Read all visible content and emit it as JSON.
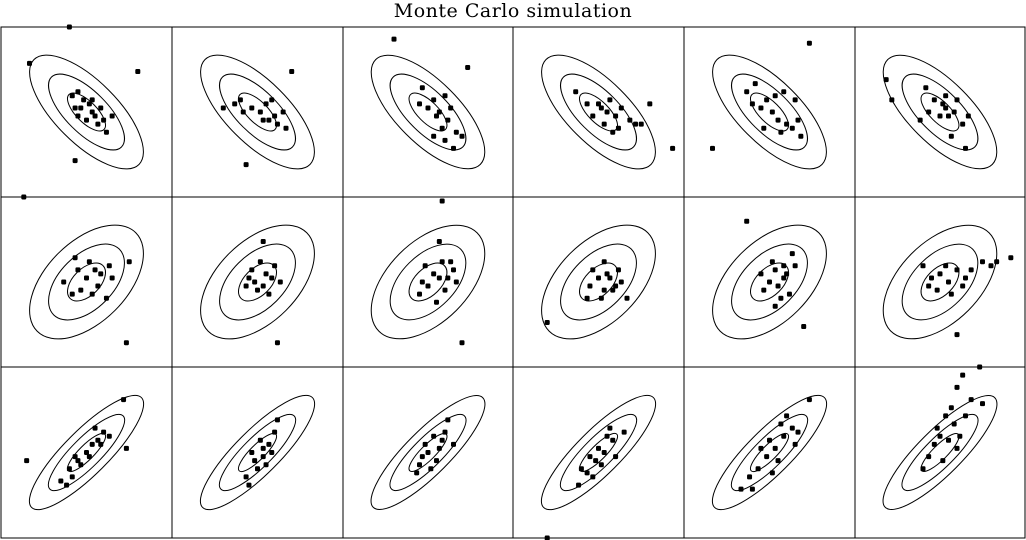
{
  "title": "Monte Carlo simulation",
  "chart_data": {
    "type": "scatter",
    "title": "Monte Carlo simulation",
    "grid": false,
    "legend": "none",
    "xlim": [
      -3,
      3
    ],
    "ylim": [
      -2.1,
      2.1
    ],
    "layout": {
      "rows": 3,
      "cols": 6
    },
    "ellipse_levels": [
      1,
      2,
      3
    ],
    "row_correlation": [
      -0.7,
      0.5,
      0.85
    ],
    "colors": {
      "ink": "#000000",
      "background": "#ffffff"
    },
    "panels": [
      {
        "row": 0,
        "col": 0,
        "points": [
          [
            -0.6,
            2.1
          ],
          [
            -2.0,
            1.2
          ],
          [
            -0.4,
            -1.2
          ],
          [
            1.8,
            1.0
          ],
          [
            -0.3,
            0.5
          ],
          [
            0.2,
            0.0
          ],
          [
            -0.5,
            0.4
          ],
          [
            0.4,
            -0.3
          ],
          [
            0.1,
            0.2
          ],
          [
            -0.2,
            0.1
          ],
          [
            0.3,
            -0.1
          ],
          [
            0.6,
            -0.2
          ],
          [
            -0.1,
            0.3
          ],
          [
            0.5,
            0.1
          ],
          [
            0.0,
            -0.2
          ],
          [
            -0.4,
            0.1
          ],
          [
            0.2,
            0.3
          ],
          [
            0.7,
            -0.5
          ],
          [
            0.9,
            -0.1
          ],
          [
            -0.3,
            -0.1
          ]
        ]
      },
      {
        "row": 0,
        "col": 1,
        "points": [
          [
            -0.4,
            -1.3
          ],
          [
            1.2,
            1.0
          ],
          [
            -0.8,
            0.2
          ],
          [
            -1.2,
            0.1
          ],
          [
            -0.5,
            0.0
          ],
          [
            0.3,
            0.2
          ],
          [
            0.6,
            -0.1
          ],
          [
            0.2,
            -0.2
          ],
          [
            -0.2,
            0.1
          ],
          [
            0.5,
            0.3
          ],
          [
            0.9,
            0.0
          ],
          [
            -0.6,
            0.3
          ],
          [
            0.1,
            0.0
          ],
          [
            0.7,
            -0.3
          ],
          [
            1.0,
            -0.4
          ],
          [
            0.4,
            -0.2
          ]
        ]
      },
      {
        "row": 0,
        "col": 2,
        "points": [
          [
            -1.2,
            1.8
          ],
          [
            1.4,
            1.1
          ],
          [
            -0.2,
            0.6
          ],
          [
            0.2,
            0.3
          ],
          [
            0.6,
            0.4
          ],
          [
            0.3,
            -0.1
          ],
          [
            0.0,
            0.1
          ],
          [
            0.5,
            -0.4
          ],
          [
            0.8,
            0.1
          ],
          [
            -0.3,
            0.2
          ],
          [
            0.4,
            0.0
          ],
          [
            0.7,
            -0.2
          ],
          [
            1.0,
            -0.5
          ],
          [
            0.2,
            -0.6
          ],
          [
            0.6,
            -0.7
          ],
          [
            0.9,
            -0.9
          ],
          [
            1.2,
            -0.6
          ]
        ]
      },
      {
        "row": 0,
        "col": 3,
        "points": [
          [
            2.6,
            -0.9
          ],
          [
            1.8,
            0.2
          ],
          [
            1.5,
            -0.3
          ],
          [
            -0.8,
            0.5
          ],
          [
            0.0,
            0.2
          ],
          [
            0.3,
            0.0
          ],
          [
            0.6,
            -0.1
          ],
          [
            -0.2,
            -0.1
          ],
          [
            0.4,
            0.3
          ],
          [
            0.8,
            0.1
          ],
          [
            1.1,
            -0.2
          ],
          [
            0.2,
            -0.3
          ],
          [
            -0.4,
            0.2
          ],
          [
            0.7,
            -0.4
          ],
          [
            1.3,
            -0.3
          ],
          [
            0.5,
            -0.5
          ],
          [
            0.1,
            0.1
          ]
        ]
      },
      {
        "row": 0,
        "col": 4,
        "points": [
          [
            1.4,
            1.7
          ],
          [
            -2.0,
            -0.9
          ],
          [
            -0.5,
            0.7
          ],
          [
            -0.8,
            0.5
          ],
          [
            -0.1,
            0.3
          ],
          [
            0.2,
            0.4
          ],
          [
            0.5,
            0.5
          ],
          [
            -0.3,
            0.1
          ],
          [
            0.1,
            0.0
          ],
          [
            0.6,
            -0.3
          ],
          [
            0.8,
            -0.4
          ],
          [
            1.1,
            -0.6
          ],
          [
            0.3,
            -0.2
          ],
          [
            -0.6,
            0.2
          ],
          [
            0.9,
            0.3
          ],
          [
            0.4,
            -0.5
          ],
          [
            1.0,
            -0.2
          ],
          [
            -0.2,
            -0.4
          ]
        ]
      },
      {
        "row": 0,
        "col": 5,
        "points": [
          [
            -1.9,
            0.8
          ],
          [
            -1.7,
            0.3
          ],
          [
            -0.5,
            0.6
          ],
          [
            -0.2,
            0.3
          ],
          [
            0.1,
            0.2
          ],
          [
            0.3,
            -0.1
          ],
          [
            0.5,
            0.0
          ],
          [
            -0.4,
            0.0
          ],
          [
            0.0,
            -0.1
          ],
          [
            0.2,
            0.4
          ],
          [
            0.6,
            0.3
          ],
          [
            0.8,
            -0.3
          ],
          [
            1.0,
            -0.1
          ],
          [
            -0.7,
            -0.2
          ],
          [
            0.4,
            -0.6
          ],
          [
            0.9,
            -0.9
          ],
          [
            0.2,
            0.1
          ]
        ]
      },
      {
        "row": 1,
        "col": 0,
        "points": [
          [
            -2.2,
            2.1
          ],
          [
            1.5,
            0.5
          ],
          [
            1.4,
            -1.5
          ],
          [
            -0.4,
            0.6
          ],
          [
            0.0,
            0.1
          ],
          [
            0.3,
            0.3
          ],
          [
            0.5,
            0.2
          ],
          [
            -0.2,
            -0.2
          ],
          [
            -0.5,
            -0.3
          ],
          [
            0.7,
            -0.4
          ],
          [
            0.1,
            0.5
          ],
          [
            -0.8,
            0.0
          ],
          [
            0.4,
            -0.1
          ],
          [
            0.8,
            0.4
          ],
          [
            -0.3,
            0.3
          ],
          [
            0.2,
            -0.3
          ],
          [
            0.9,
            0.1
          ]
        ]
      },
      {
        "row": 1,
        "col": 1,
        "points": [
          [
            0.2,
            1.0
          ],
          [
            0.7,
            -1.5
          ],
          [
            0.1,
            0.5
          ],
          [
            0.3,
            0.2
          ],
          [
            -0.2,
            0.3
          ],
          [
            -0.4,
            -0.1
          ],
          [
            0.0,
            -0.2
          ],
          [
            0.5,
            0.1
          ],
          [
            0.8,
            0.0
          ],
          [
            -0.1,
            0.0
          ],
          [
            0.4,
            -0.3
          ],
          [
            0.6,
            0.4
          ],
          [
            0.2,
            -0.1
          ],
          [
            -0.3,
            0.1
          ]
        ]
      },
      {
        "row": 1,
        "col": 2,
        "points": [
          [
            0.5,
            2.0
          ],
          [
            1.2,
            -1.5
          ],
          [
            0.4,
            1.0
          ],
          [
            -0.1,
            0.4
          ],
          [
            0.2,
            0.2
          ],
          [
            0.5,
            0.5
          ],
          [
            0.7,
            0.1
          ],
          [
            -0.3,
            -0.3
          ],
          [
            0.0,
            -0.1
          ],
          [
            0.6,
            -0.2
          ],
          [
            0.9,
            0.3
          ],
          [
            1.0,
            0.0
          ],
          [
            0.3,
            -0.5
          ],
          [
            -0.2,
            0.0
          ],
          [
            0.8,
            0.5
          ],
          [
            0.4,
            0.1
          ]
        ]
      },
      {
        "row": 1,
        "col": 3,
        "points": [
          [
            -1.8,
            -1.0
          ],
          [
            1.0,
            -0.4
          ],
          [
            0.2,
            0.5
          ],
          [
            0.0,
            0.1
          ],
          [
            0.3,
            0.2
          ],
          [
            -0.3,
            -0.1
          ],
          [
            0.5,
            -0.2
          ],
          [
            0.1,
            -0.4
          ],
          [
            -0.2,
            0.3
          ],
          [
            0.4,
            0.1
          ],
          [
            0.7,
            0.3
          ],
          [
            -0.4,
            -0.4
          ],
          [
            0.6,
            -0.1
          ],
          [
            0.2,
            -0.2
          ],
          [
            0.8,
            0.0
          ]
        ]
      },
      {
        "row": 1,
        "col": 4,
        "points": [
          [
            -0.8,
            1.5
          ],
          [
            1.2,
            -1.1
          ],
          [
            0.8,
            0.7
          ],
          [
            0.5,
            0.4
          ],
          [
            0.2,
            0.3
          ],
          [
            0.0,
            0.0
          ],
          [
            0.3,
            -0.1
          ],
          [
            -0.2,
            -0.2
          ],
          [
            0.6,
            0.2
          ],
          [
            0.4,
            -0.4
          ],
          [
            0.1,
            0.5
          ],
          [
            -0.3,
            0.2
          ],
          [
            0.7,
            -0.3
          ],
          [
            0.5,
            0.1
          ],
          [
            0.9,
            0.4
          ],
          [
            0.2,
            -0.6
          ]
        ]
      },
      {
        "row": 1,
        "col": 5,
        "points": [
          [
            2.5,
            0.6
          ],
          [
            2.0,
            0.5
          ],
          [
            1.8,
            0.4
          ],
          [
            1.5,
            0.5
          ],
          [
            0.6,
            -1.3
          ],
          [
            -0.6,
            0.4
          ],
          [
            -0.3,
            0.1
          ],
          [
            0.0,
            0.2
          ],
          [
            0.3,
            0.0
          ],
          [
            0.6,
            0.3
          ],
          [
            0.9,
            0.1
          ],
          [
            -0.1,
            -0.2
          ],
          [
            0.4,
            -0.3
          ],
          [
            0.8,
            -0.1
          ],
          [
            1.1,
            0.3
          ],
          [
            -0.4,
            -0.1
          ],
          [
            0.2,
            0.4
          ]
        ]
      },
      {
        "row": 2,
        "col": 0,
        "points": [
          [
            -2.1,
            -0.2
          ],
          [
            1.3,
            1.3
          ],
          [
            1.4,
            0.1
          ],
          [
            -0.9,
            -0.7
          ],
          [
            -0.6,
            -0.4
          ],
          [
            -0.3,
            -0.2
          ],
          [
            0.0,
            0.0
          ],
          [
            0.2,
            0.2
          ],
          [
            0.4,
            0.3
          ],
          [
            0.6,
            0.5
          ],
          [
            -0.5,
            -0.6
          ],
          [
            -0.2,
            -0.3
          ],
          [
            0.1,
            -0.1
          ],
          [
            0.5,
            0.2
          ],
          [
            0.8,
            0.4
          ],
          [
            -0.7,
            -0.8
          ],
          [
            0.3,
            0.6
          ],
          [
            -0.4,
            -0.1
          ]
        ]
      },
      {
        "row": 2,
        "col": 1,
        "points": [
          [
            -0.3,
            -0.8
          ],
          [
            0.0,
            -0.4
          ],
          [
            0.2,
            -0.1
          ],
          [
            0.4,
            0.2
          ],
          [
            0.6,
            0.5
          ],
          [
            -0.2,
            0.0
          ],
          [
            0.1,
            0.3
          ],
          [
            0.3,
            -0.3
          ],
          [
            0.5,
            0.0
          ],
          [
            -0.4,
            -0.6
          ],
          [
            0.7,
            0.8
          ],
          [
            0.2,
            0.1
          ],
          [
            -0.1,
            -0.2
          ]
        ]
      },
      {
        "row": 2,
        "col": 2,
        "points": [
          [
            0.7,
            0.8
          ],
          [
            0.9,
            0.2
          ],
          [
            0.2,
            0.4
          ],
          [
            0.0,
            0.0
          ],
          [
            -0.3,
            -0.3
          ],
          [
            0.4,
            0.1
          ],
          [
            -0.1,
            0.2
          ],
          [
            0.3,
            -0.2
          ],
          [
            -0.4,
            -0.5
          ],
          [
            0.6,
            0.5
          ],
          [
            0.1,
            -0.4
          ],
          [
            -0.2,
            -0.1
          ],
          [
            0.5,
            0.3
          ]
        ]
      },
      {
        "row": 2,
        "col": 3,
        "points": [
          [
            -1.8,
            -2.1
          ],
          [
            0.9,
            0.5
          ],
          [
            0.5,
            0.3
          ],
          [
            0.2,
            0.0
          ],
          [
            -0.1,
            -0.2
          ],
          [
            -0.4,
            -0.5
          ],
          [
            -0.7,
            -0.8
          ],
          [
            0.3,
            0.4
          ],
          [
            0.0,
            0.1
          ],
          [
            -0.3,
            -0.1
          ],
          [
            0.6,
            -0.1
          ],
          [
            -0.6,
            -0.4
          ],
          [
            0.1,
            -0.3
          ],
          [
            0.4,
            0.6
          ],
          [
            -0.2,
            -0.6
          ]
        ]
      },
      {
        "row": 2,
        "col": 4,
        "points": [
          [
            1.4,
            1.3
          ],
          [
            0.8,
            0.6
          ],
          [
            0.5,
            0.4
          ],
          [
            0.2,
            0.1
          ],
          [
            -0.1,
            -0.1
          ],
          [
            -0.4,
            -0.4
          ],
          [
            -0.7,
            -0.6
          ],
          [
            -1.0,
            -0.9
          ],
          [
            0.3,
            -0.2
          ],
          [
            0.0,
            0.3
          ],
          [
            0.6,
            0.9
          ],
          [
            -0.3,
            0.1
          ],
          [
            1.0,
            0.5
          ],
          [
            0.1,
            -0.5
          ],
          [
            -0.6,
            -0.9
          ],
          [
            0.4,
            0.7
          ],
          [
            0.9,
            0.2
          ]
        ]
      },
      {
        "row": 2,
        "col": 5,
        "points": [
          [
            1.4,
            2.1
          ],
          [
            0.8,
            1.9
          ],
          [
            0.6,
            1.6
          ],
          [
            1.1,
            1.3
          ],
          [
            1.5,
            1.2
          ],
          [
            0.2,
            0.9
          ],
          [
            0.5,
            0.7
          ],
          [
            0.0,
            0.4
          ],
          [
            -0.2,
            0.2
          ],
          [
            0.3,
            0.3
          ],
          [
            -0.4,
            -0.1
          ],
          [
            0.1,
            -0.2
          ],
          [
            0.7,
            0.4
          ],
          [
            -0.6,
            -0.4
          ],
          [
            0.9,
            0.9
          ],
          [
            0.4,
            1.1
          ],
          [
            -0.1,
            0.6
          ],
          [
            0.6,
            0.1
          ]
        ]
      }
    ]
  }
}
